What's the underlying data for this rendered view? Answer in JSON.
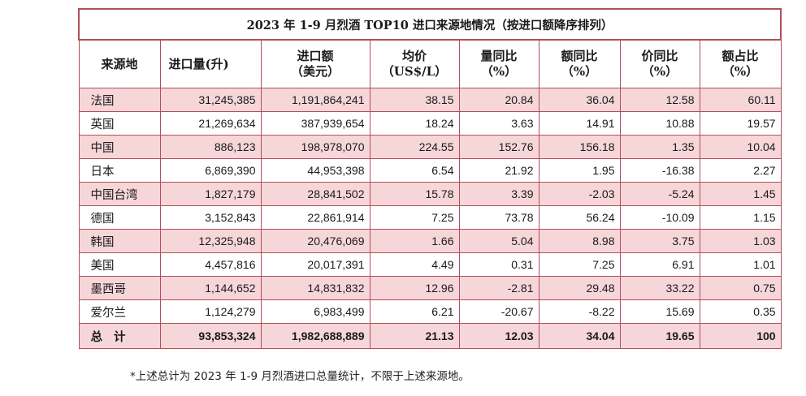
{
  "title": "2023 年 1-9 月烈酒 TOP10 进口来源地情况（按进口额降序排列）",
  "headers": [
    {
      "l1": "来源地",
      "l2": ""
    },
    {
      "l1": "进口量(升)",
      "l2": ""
    },
    {
      "l1": "进口额",
      "l2": "（美元）"
    },
    {
      "l1": "均价",
      "l2": "（US$/L）"
    },
    {
      "l1": "量同比",
      "l2": "（%）"
    },
    {
      "l1": "额同比",
      "l2": "（%）"
    },
    {
      "l1": "价同比",
      "l2": "（%）"
    },
    {
      "l1": "额占比",
      "l2": "（%）"
    }
  ],
  "rows": [
    [
      "法国",
      "31,245,385",
      "1,191,864,241",
      "38.15",
      "20.84",
      "36.04",
      "12.58",
      "60.11"
    ],
    [
      "英国",
      "21,269,634",
      "387,939,654",
      "18.24",
      "3.63",
      "14.91",
      "10.88",
      "19.57"
    ],
    [
      "中国",
      "886,123",
      "198,978,070",
      "224.55",
      "152.76",
      "156.18",
      "1.35",
      "10.04"
    ],
    [
      "日本",
      "6,869,390",
      "44,953,398",
      "6.54",
      "21.92",
      "1.95",
      "-16.38",
      "2.27"
    ],
    [
      "中国台湾",
      "1,827,179",
      "28,841,502",
      "15.78",
      "3.39",
      "-2.03",
      "-5.24",
      "1.45"
    ],
    [
      "德国",
      "3,152,843",
      "22,861,914",
      "7.25",
      "73.78",
      "56.24",
      "-10.09",
      "1.15"
    ],
    [
      "韩国",
      "12,325,948",
      "20,476,069",
      "1.66",
      "5.04",
      "8.98",
      "3.75",
      "1.03"
    ],
    [
      "美国",
      "4,457,816",
      "20,017,391",
      "4.49",
      "0.31",
      "7.25",
      "6.91",
      "1.01"
    ],
    [
      "墨西哥",
      "1,144,652",
      "14,831,832",
      "12.96",
      "-2.81",
      "29.48",
      "33.22",
      "0.75"
    ],
    [
      "爱尔兰",
      "1,124,279",
      "6,983,499",
      "6.21",
      "-20.67",
      "-8.22",
      "15.69",
      "0.35"
    ]
  ],
  "total": [
    "总计",
    "93,853,324",
    "1,982,688,889",
    "21.13",
    "12.03",
    "34.04",
    "19.65",
    "100"
  ],
  "footnote": "*上述总计为 2023 年 1-9 月烈酒进口总量统计，不限于上述来源地。",
  "colors": {
    "border": "#b24f5a",
    "band": "#f6d6d8"
  }
}
